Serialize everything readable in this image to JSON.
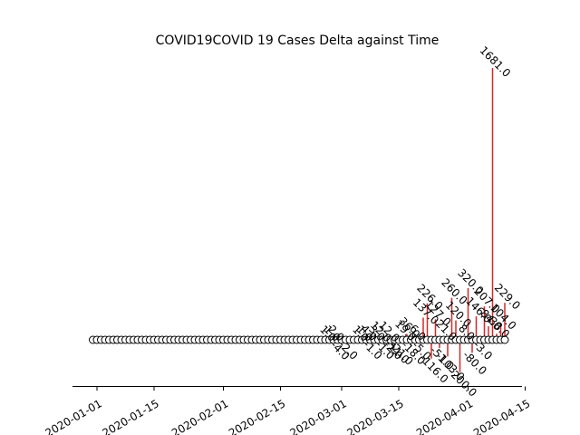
{
  "chart_data": {
    "type": "stem",
    "title": "COVID19COVID 19 Cases Delta against Time",
    "xlabel": "",
    "ylabel": "",
    "grid": false,
    "legend": "none",
    "x_tick_labels": [
      "2020-01-01",
      "2020-01-15",
      "2020-02-01",
      "2020-02-15",
      "2020-03-01",
      "2020-03-15",
      "2020-04-01",
      "2020-04-15"
    ],
    "x_range": [
      "2019-12-29",
      "2020-04-15"
    ],
    "y_range": [
      -250,
      1900
    ],
    "colors": {
      "stem": "#d62728",
      "marker_face": "#ffffff",
      "marker_edge": "#000000"
    },
    "series": [
      {
        "start_date": "2019-12-31",
        "end_date": "2020-04-10",
        "zero_value_dates_shown_as_markers": true,
        "points": [
          {
            "date": "2020-02-26",
            "value": 1.0
          },
          {
            "date": "2020-02-27",
            "value": 1.0
          },
          {
            "date": "2020-02-28",
            "value": 2.0
          },
          {
            "date": "2020-02-29",
            "value": -4.0
          },
          {
            "date": "2020-03-02",
            "value": -2.0
          },
          {
            "date": "2020-03-05",
            "value": 1.0
          },
          {
            "date": "2020-03-06",
            "value": 1.0
          },
          {
            "date": "2020-03-07",
            "value": 4.0
          },
          {
            "date": "2020-03-08",
            "value": -1.0
          },
          {
            "date": "2020-03-09",
            "value": 3.0
          },
          {
            "date": "2020-03-10",
            "value": 12.0
          },
          {
            "date": "2020-03-11",
            "value": -1.0
          },
          {
            "date": "2020-03-12",
            "value": 12.0
          },
          {
            "date": "2020-03-13",
            "value": -2.0
          },
          {
            "date": "2020-03-14",
            "value": -11.0
          },
          {
            "date": "2020-03-15",
            "value": -21.0
          },
          {
            "date": "2020-03-16",
            "value": 19.0
          },
          {
            "date": "2020-03-17",
            "value": 36.0
          },
          {
            "date": "2020-03-18",
            "value": -18.0
          },
          {
            "date": "2020-03-19",
            "value": 6.0
          },
          {
            "date": "2020-03-20",
            "value": -5.0
          },
          {
            "date": "2020-03-21",
            "value": 137.0
          },
          {
            "date": "2020-03-22",
            "value": 226.0
          },
          {
            "date": "2020-03-23",
            "value": -116.0
          },
          {
            "date": "2020-03-24",
            "value": 127.0
          },
          {
            "date": "2020-03-25",
            "value": -51.0
          },
          {
            "date": "2020-03-26",
            "value": 21.0
          },
          {
            "date": "2020-03-27",
            "value": -103.0
          },
          {
            "date": "2020-03-28",
            "value": 260.0
          },
          {
            "date": "2020-03-29",
            "value": 120.0
          },
          {
            "date": "2020-03-30",
            "value": -200.0
          },
          {
            "date": "2020-03-31",
            "value": 8.0
          },
          {
            "date": "2020-04-01",
            "value": 320.0
          },
          {
            "date": "2020-04-02",
            "value": -80.0
          },
          {
            "date": "2020-04-03",
            "value": 146.0
          },
          {
            "date": "2020-04-04",
            "value": -3.0
          },
          {
            "date": "2020-04-05",
            "value": 207.0
          },
          {
            "date": "2020-04-06",
            "value": 84.0
          },
          {
            "date": "2020-04-07",
            "value": 1681.0
          },
          {
            "date": "2020-04-08",
            "value": 38.0
          },
          {
            "date": "2020-04-09",
            "value": 104.0
          },
          {
            "date": "2020-04-10",
            "value": 229.0
          }
        ]
      }
    ]
  }
}
